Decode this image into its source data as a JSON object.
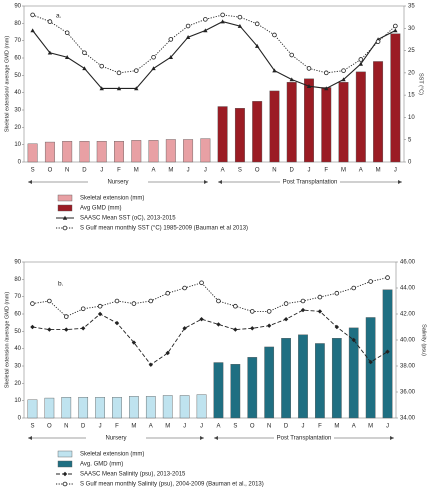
{
  "chart_data": [
    {
      "type": "combo",
      "panel_label": "a.",
      "y_label": "Skeletal extension/ average GMD (mm)",
      "y2_label": "SST (°C)",
      "categories": [
        "S",
        "O",
        "N",
        "D",
        "J",
        "F",
        "M",
        "A",
        "M",
        "J",
        "J",
        "A",
        "S",
        "O",
        "N",
        "D",
        "J",
        "F",
        "M",
        "A",
        "M",
        "J"
      ],
      "period_labels": [
        "Nursery",
        "Post Transplantation"
      ],
      "ylim": [
        0,
        90
      ],
      "yticks": [
        0,
        10,
        20,
        30,
        40,
        50,
        60,
        70,
        80,
        90
      ],
      "y2lim": [
        0,
        35
      ],
      "y2ticks": [
        0,
        5,
        10,
        15,
        20,
        25,
        30,
        35
      ],
      "series": [
        {
          "name": "Skeletal extension (mm)",
          "kind": "bar",
          "color": "#e8a0a4",
          "values": [
            10.5,
            11.5,
            12,
            12,
            12,
            12,
            12.5,
            12.5,
            13,
            13,
            13.5,
            null,
            null,
            null,
            null,
            null,
            null,
            null,
            null,
            null,
            null,
            null
          ]
        },
        {
          "name": "Avg GMD (mm)",
          "kind": "bar",
          "color": "#9b1c24",
          "values": [
            null,
            null,
            null,
            null,
            null,
            null,
            null,
            null,
            null,
            null,
            null,
            32,
            31,
            35,
            41,
            46,
            48,
            43,
            46,
            52,
            58,
            74
          ]
        },
        {
          "name": "SAASC Mean SST (oC), 2013-2015",
          "kind": "line",
          "axis": "y2",
          "color": "#222",
          "style": "solid",
          "marker": "triangle",
          "values": [
            29.5,
            24.5,
            23.5,
            21,
            16.5,
            16.5,
            16.5,
            21,
            23.5,
            28,
            29.5,
            31.5,
            30.5,
            26,
            20.5,
            18.5,
            17,
            16.5,
            18.5,
            22,
            27.5,
            29.5
          ]
        },
        {
          "name": "S Gulf mean monthly  SST (°C) 1985-2009  (Bauman et al 2013)",
          "kind": "line",
          "axis": "y2",
          "color": "#222",
          "style": "dotted",
          "marker": "circle",
          "values": [
            33,
            31.5,
            29,
            24.5,
            21.5,
            20,
            20.5,
            23.5,
            27.5,
            30.5,
            32,
            33,
            32.5,
            31,
            28.5,
            24,
            21,
            20,
            20.5,
            23,
            27,
            30.5
          ]
        }
      ]
    },
    {
      "type": "combo",
      "panel_label": "b.",
      "y_label": "Skeletal extension /average GMD (mm)",
      "y2_label": "Salinity (psu)",
      "categories": [
        "S",
        "O",
        "N",
        "D",
        "J",
        "F",
        "M",
        "A",
        "M",
        "J",
        "J",
        "A",
        "S",
        "O",
        "N",
        "D",
        "J",
        "F",
        "M",
        "A",
        "M",
        "J"
      ],
      "period_labels": [
        "Nursery",
        "Post Transplantation"
      ],
      "ylim": [
        0,
        90
      ],
      "yticks": [
        0,
        10,
        20,
        30,
        40,
        50,
        60,
        70,
        80,
        90
      ],
      "y2lim": [
        34,
        46
      ],
      "y2ticks": [
        {
          "value": 34,
          "label": "34.00"
        },
        {
          "value": 36,
          "label": "36.00"
        },
        {
          "value": 38,
          "label": "38.00"
        },
        {
          "value": 40,
          "label": "40.00"
        },
        {
          "value": 42,
          "label": "42.00"
        },
        {
          "value": 44,
          "label": "44.00"
        },
        {
          "value": 46,
          "label": "46.00"
        }
      ],
      "series": [
        {
          "name": "Skeletal extension (mm)",
          "kind": "bar",
          "color": "#bfe3ef",
          "values": [
            10.5,
            11.5,
            12,
            12,
            12,
            12,
            12.5,
            12.5,
            13,
            13,
            13.5,
            null,
            null,
            null,
            null,
            null,
            null,
            null,
            null,
            null,
            null,
            null
          ]
        },
        {
          "name": "Avg. GMD (mm)",
          "kind": "bar",
          "color": "#1f6f82",
          "values": [
            null,
            null,
            null,
            null,
            null,
            null,
            null,
            null,
            null,
            null,
            null,
            32,
            31,
            35,
            41,
            46,
            48,
            43,
            46,
            52,
            58,
            74
          ]
        },
        {
          "name": "SAASC Mean  Salinity (psu), 2013-2015",
          "kind": "line",
          "axis": "y2",
          "color": "#222",
          "style": "dashed",
          "marker": "diamond",
          "values": [
            41,
            40.8,
            40.8,
            40.9,
            42,
            41.3,
            39.8,
            38.1,
            39,
            40.9,
            41.6,
            41.2,
            40.8,
            40.9,
            41.1,
            41.6,
            42.3,
            42.2,
            41,
            40,
            38.3,
            39.1
          ]
        },
        {
          "name": "S  Gulf mean monthly Salinity (psu), 2004-2009 (Bauman et al., 2013)",
          "kind": "line",
          "axis": "y2",
          "color": "#222",
          "style": "dotted",
          "marker": "circle",
          "values": [
            42.8,
            43,
            41.8,
            42.4,
            42.6,
            43,
            42.8,
            43,
            43.6,
            44,
            44.4,
            43,
            42.6,
            42.2,
            42.2,
            42.8,
            43,
            43.3,
            43.6,
            44,
            44.5,
            44.8
          ]
        }
      ]
    }
  ]
}
